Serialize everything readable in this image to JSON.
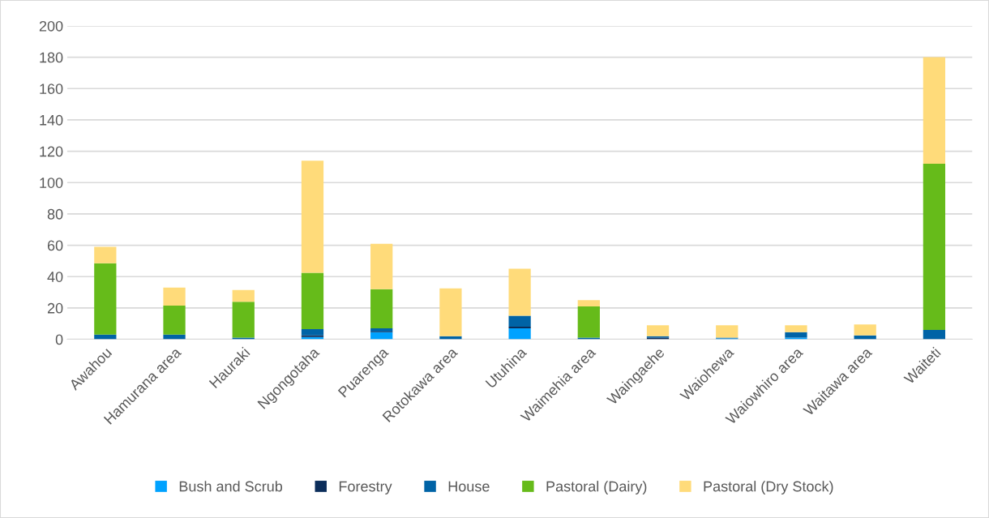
{
  "chart_data": {
    "type": "bar",
    "stacked": true,
    "categories": [
      "Awahou",
      "Hamurana area",
      "Hauraki",
      "Ngongotaha",
      "Puarenga",
      "Rotokawa area",
      "Utuhina",
      "Waimehia area",
      "Waingaehe",
      "Waiohewa",
      "Waiowhiro area",
      "Waitawa area",
      "Waiteti"
    ],
    "series": [
      {
        "name": "Bush and Scrub",
        "color": "#00a2ff",
        "values": [
          0,
          0,
          0,
          1.5,
          4.5,
          0,
          7,
          0,
          0,
          0.5,
          1,
          0,
          0
        ]
      },
      {
        "name": "Forestry",
        "color": "#0b2d5a",
        "values": [
          0,
          0,
          0,
          1,
          0.5,
          0,
          1,
          0,
          1,
          0,
          0,
          0,
          0
        ]
      },
      {
        "name": "House",
        "color": "#0063a6",
        "values": [
          3,
          3,
          1,
          4,
          2,
          2,
          7,
          1,
          1,
          0.5,
          3.5,
          2.5,
          6
        ]
      },
      {
        "name": "Pastoral (Dairy)",
        "color": "#66bb1a",
        "values": [
          45.5,
          18.5,
          23,
          36,
          25,
          0,
          0,
          20,
          0,
          0,
          0,
          0,
          106
        ]
      },
      {
        "name": "Pastoral (Dry Stock)",
        "color": "#ffdb7a",
        "values": [
          10.5,
          11.5,
          7.5,
          71.5,
          29,
          30.5,
          30,
          4,
          7,
          8,
          4.5,
          7,
          68
        ]
      }
    ],
    "ylim": [
      0,
      200
    ],
    "yticks": [
      0,
      20,
      40,
      60,
      80,
      100,
      120,
      140,
      160,
      180,
      200
    ],
    "grid": "y",
    "legend": "bottom"
  }
}
